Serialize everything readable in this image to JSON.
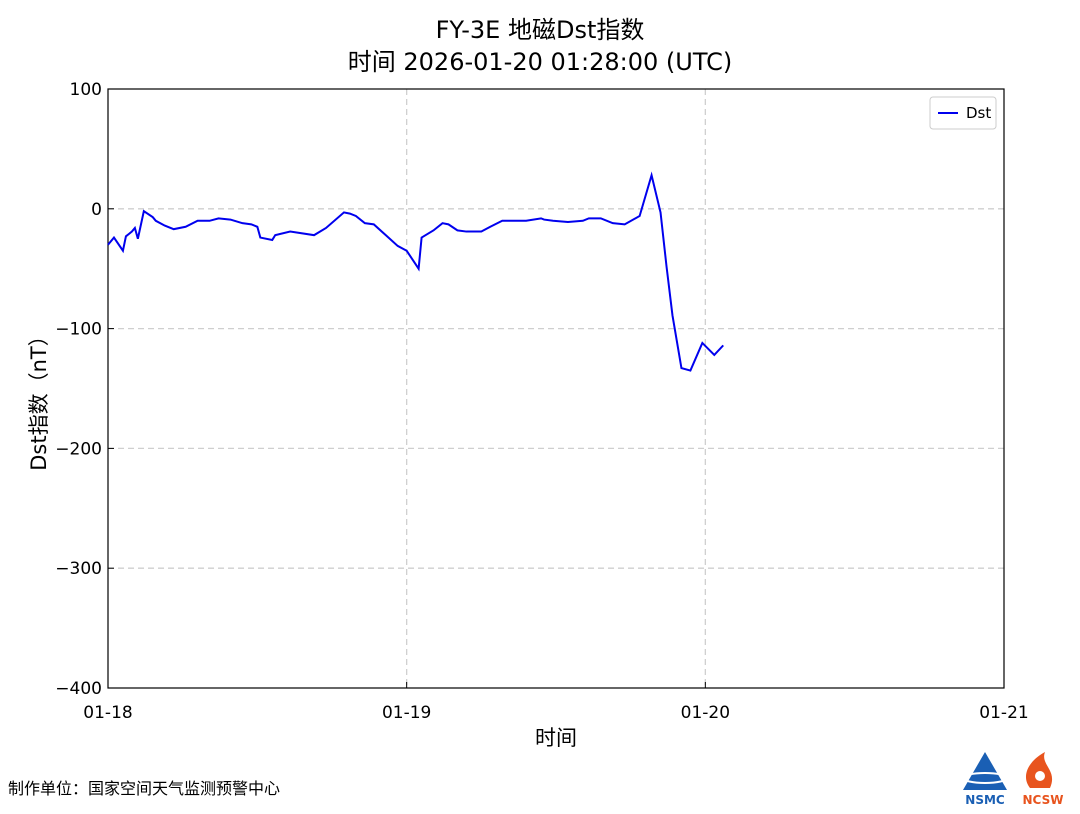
{
  "chart_data": {
    "type": "line",
    "title": "FY-3E 地磁Dst指数",
    "subtitle": "时间 2026-01-20 01:28:00 (UTC)",
    "xlabel": "时间",
    "ylabel": "Dst指数（nT）",
    "x": [
      0,
      0.02,
      0.05,
      0.06,
      0.08,
      0.09,
      0.1,
      0.12,
      0.15,
      0.16,
      0.19,
      0.22,
      0.26,
      0.3,
      0.34,
      0.37,
      0.41,
      0.45,
      0.48,
      0.5,
      0.51,
      0.55,
      0.56,
      0.61,
      0.69,
      0.73,
      0.79,
      0.81,
      0.83,
      0.86,
      0.89,
      0.93,
      0.97,
      1.0,
      1.04,
      1.05,
      1.09,
      1.12,
      1.14,
      1.17,
      1.2,
      1.25,
      1.28,
      1.32,
      1.4,
      1.45,
      1.46,
      1.49,
      1.54,
      1.59,
      1.61,
      1.65,
      1.69,
      1.73,
      1.78,
      1.82,
      1.85,
      1.87,
      1.89,
      1.92,
      1.95,
      1.99,
      2.03,
      2.06
    ],
    "series": [
      {
        "name": "Dst",
        "color": "#0000ee",
        "values": [
          -30,
          -24,
          -35,
          -23,
          -19,
          -16,
          -25,
          -2,
          -7,
          -10,
          -14,
          -17,
          -15,
          -10,
          -10,
          -8,
          -9,
          -12,
          -13,
          -15,
          -24,
          -26,
          -22,
          -19,
          -22,
          -16,
          -3,
          -4,
          -6,
          -12,
          -13,
          -22,
          -31,
          -35,
          -50,
          -24,
          -18,
          -12,
          -13,
          -18,
          -19,
          -19,
          -15,
          -10,
          -10,
          -8,
          -9,
          -10,
          -11,
          -10,
          -8,
          -8,
          -12,
          -13,
          -6,
          28,
          -3,
          -48,
          -89,
          -133,
          -135,
          -112,
          -122,
          -114
        ]
      }
    ],
    "xlim": [
      0,
      3
    ],
    "xticks": [
      {
        "value": 0,
        "label": "01-18"
      },
      {
        "value": 1,
        "label": "01-19"
      },
      {
        "value": 2,
        "label": "01-20"
      },
      {
        "value": 3,
        "label": "01-21"
      }
    ],
    "ylim": [
      -400,
      100
    ],
    "yticks": [
      {
        "value": -400,
        "label": "−400"
      },
      {
        "value": -300,
        "label": "−300"
      },
      {
        "value": -200,
        "label": "−200"
      },
      {
        "value": -100,
        "label": "−100"
      },
      0,
      100
    ],
    "grid": true,
    "legend": "upper right"
  },
  "footer": {
    "producer": "制作单位：国家空间天气监测预警中心",
    "logo_left": "NSMC",
    "logo_right": "NCSW"
  }
}
